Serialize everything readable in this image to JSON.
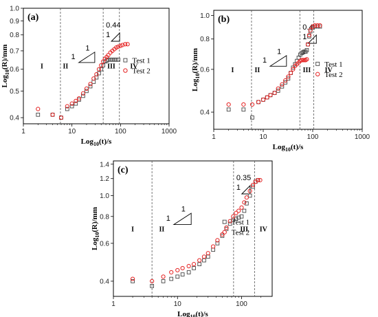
{
  "chart_data": [
    {
      "panel": "(a)",
      "type": "scatter",
      "xscale": "log",
      "yscale": "log",
      "xlim": [
        1,
        1000
      ],
      "ylim": [
        0.38,
        1.0
      ],
      "xticks": [
        "1",
        "10",
        "100",
        "1000"
      ],
      "yticks": [
        "0.4",
        "0.5",
        "0.6",
        "0.7",
        "0.8",
        "0.9",
        "1.0"
      ],
      "xlabel": "Log10(t)/s",
      "ylabel": "Log10(R)/mm",
      "regions": [
        "I",
        "II",
        "III",
        "IV"
      ],
      "region_boundaries": [
        5.8,
        44,
        95
      ],
      "slope_triangle": {
        "horizontal": "1",
        "vertical": "1"
      },
      "slope_annotation": {
        "label": "0.44",
        "horizontal": "1"
      },
      "legend": [
        "Test 1",
        "Test 2"
      ],
      "series": [
        {
          "name": "Test 1",
          "marker": "square",
          "x": [
            2,
            4,
            6,
            8,
            10,
            12,
            14,
            17,
            20,
            24,
            28,
            32,
            36,
            40,
            44,
            48,
            52,
            56,
            62,
            68,
            75,
            82,
            90
          ],
          "y": [
            0.41,
            0.41,
            0.4,
            0.43,
            0.44,
            0.45,
            0.465,
            0.48,
            0.5,
            0.52,
            0.54,
            0.56,
            0.58,
            0.6,
            0.62,
            0.64,
            0.645,
            0.65,
            0.65,
            0.65,
            0.65,
            0.65,
            0.65
          ]
        },
        {
          "name": "Test 2",
          "marker": "circle",
          "x": [
            2,
            4,
            6,
            8,
            10,
            12,
            14,
            17,
            20,
            24,
            28,
            32,
            36,
            40,
            44,
            48,
            52,
            56,
            62,
            68,
            75,
            82,
            90,
            100,
            110,
            125,
            140
          ],
          "y": [
            0.43,
            0.41,
            0.4,
            0.44,
            0.45,
            0.46,
            0.47,
            0.49,
            0.51,
            0.53,
            0.555,
            0.575,
            0.6,
            0.62,
            0.64,
            0.655,
            0.665,
            0.675,
            0.69,
            0.7,
            0.71,
            0.72,
            0.725,
            0.73,
            0.735,
            0.74,
            0.74
          ]
        }
      ]
    },
    {
      "panel": "(b)",
      "type": "scatter",
      "xscale": "log",
      "yscale": "log",
      "xlim": [
        1,
        1000
      ],
      "ylim": [
        0.34,
        1.05
      ],
      "xticks": [
        "1",
        "10",
        "100",
        "1000"
      ],
      "yticks": [
        "0.4",
        "0.6",
        "0.8",
        "1.0"
      ],
      "xlabel": "Log10(t)/s",
      "ylabel": "Log10(R)/mm",
      "regions": [
        "I",
        "II",
        "III",
        "IV"
      ],
      "region_boundaries": [
        5.8,
        55,
        105
      ],
      "slope_triangle": {
        "horizontal": "1",
        "vertical": "1"
      },
      "slope_annotation": {
        "label": "0.4",
        "horizontal": "1"
      },
      "legend": [
        "Test 1",
        "Test 2"
      ],
      "series": [
        {
          "name": "Test 1",
          "marker": "square",
          "x": [
            2,
            4,
            6,
            8,
            10,
            12,
            14,
            17,
            20,
            24,
            28,
            32,
            36,
            40,
            44,
            48,
            52,
            56,
            60,
            64,
            68,
            72,
            76,
            80,
            85,
            90,
            100,
            110,
            125,
            140
          ],
          "y": [
            0.41,
            0.41,
            0.38,
            0.44,
            0.45,
            0.46,
            0.47,
            0.48,
            0.49,
            0.51,
            0.53,
            0.55,
            0.58,
            0.61,
            0.63,
            0.65,
            0.67,
            0.69,
            0.7,
            0.705,
            0.71,
            0.71,
            0.72,
            0.76,
            0.82,
            0.86,
            0.89,
            0.9,
            0.9,
            0.9
          ]
        },
        {
          "name": "Test 2",
          "marker": "circle",
          "x": [
            2,
            4,
            6,
            8,
            10,
            12,
            14,
            17,
            20,
            24,
            28,
            32,
            36,
            40,
            44,
            48,
            52,
            56,
            60,
            64,
            68,
            72,
            76,
            80,
            85,
            90,
            100,
            110,
            125,
            140
          ],
          "y": [
            0.43,
            0.43,
            0.43,
            0.44,
            0.45,
            0.46,
            0.47,
            0.48,
            0.5,
            0.52,
            0.54,
            0.56,
            0.58,
            0.6,
            0.62,
            0.63,
            0.64,
            0.65,
            0.655,
            0.655,
            0.655,
            0.655,
            0.66,
            0.76,
            0.83,
            0.87,
            0.9,
            0.91,
            0.91,
            0.91
          ]
        }
      ]
    },
    {
      "panel": "(c)",
      "type": "scatter",
      "xscale": "log",
      "yscale": "log",
      "xlim": [
        1,
        300
      ],
      "ylim": [
        0.34,
        1.45
      ],
      "xticks": [
        "1",
        "10",
        "100"
      ],
      "yticks": [
        "0.4",
        "0.6",
        "0.8",
        "1.0",
        "1.2",
        "1.4"
      ],
      "xlabel": "Log10(t)/s",
      "ylabel": "Log10(R)/mm",
      "regions": [
        "I",
        "II",
        "III",
        "IV"
      ],
      "region_boundaries": [
        4,
        75,
        160
      ],
      "slope_triangle": {
        "horizontal": "1",
        "vertical": "1"
      },
      "slope_annotation": {
        "label": "0.35",
        "horizontal": "1"
      },
      "legend": [
        "Test 1",
        "Test 2"
      ],
      "series": [
        {
          "name": "Test 1",
          "marker": "square",
          "x": [
            2,
            4,
            6,
            8,
            10,
            12,
            15,
            18,
            22,
            26,
            30,
            36,
            42,
            50,
            58,
            66,
            74,
            82,
            90,
            100,
            110,
            120,
            135,
            150,
            165,
            180
          ],
          "y": [
            0.4,
            0.38,
            0.4,
            0.41,
            0.42,
            0.43,
            0.44,
            0.46,
            0.48,
            0.5,
            0.52,
            0.56,
            0.6,
            0.65,
            0.7,
            0.74,
            0.77,
            0.78,
            0.79,
            0.8,
            0.85,
            0.92,
            1.0,
            1.1,
            1.16,
            1.18
          ]
        },
        {
          "name": "Test 2",
          "marker": "circle",
          "x": [
            2,
            4,
            6,
            8,
            10,
            12,
            15,
            18,
            22,
            26,
            30,
            36,
            42,
            50,
            58,
            66,
            74,
            82,
            90,
            100,
            110,
            120,
            135,
            150,
            165,
            180,
            195
          ],
          "y": [
            0.41,
            0.4,
            0.42,
            0.44,
            0.45,
            0.46,
            0.47,
            0.48,
            0.5,
            0.52,
            0.54,
            0.58,
            0.62,
            0.66,
            0.71,
            0.76,
            0.8,
            0.83,
            0.85,
            0.88,
            0.93,
            0.98,
            1.05,
            1.12,
            1.16,
            1.18,
            1.18
          ]
        }
      ]
    }
  ]
}
